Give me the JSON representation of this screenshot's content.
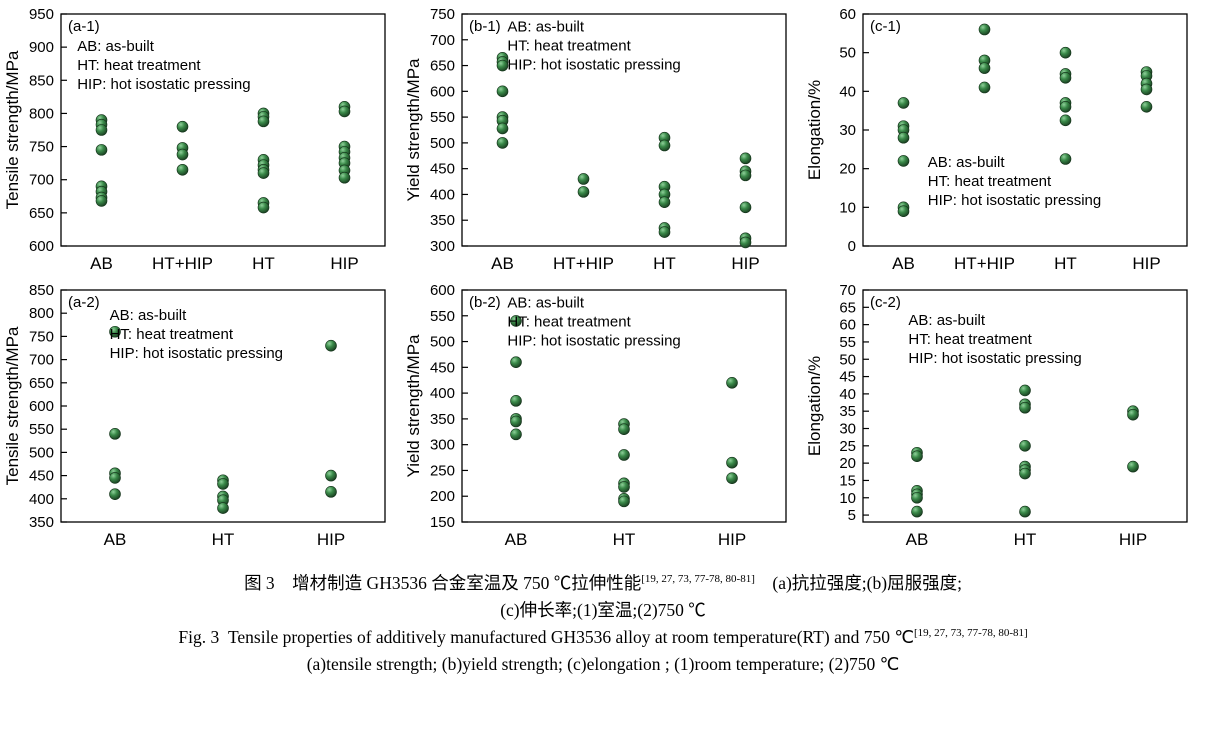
{
  "figure": {
    "marker": {
      "fill": "#3a8a49",
      "highlight": "#8fd09a",
      "edge": "#14321a"
    },
    "axis_color": "#000000"
  },
  "chart_data": [
    {
      "id": "a-1",
      "type": "scatter",
      "panel_label": "(a-1)",
      "ylabel": "Tensile strength/MPa",
      "ylim": [
        600,
        950
      ],
      "yticks": [
        600,
        650,
        700,
        750,
        800,
        850,
        900,
        950
      ],
      "legend": {
        "lines": [
          "AB: as-built",
          "HT: heat treatment",
          "HIP: hot isostatic pressing"
        ],
        "pos": {
          "x": 0.05,
          "y": 0.1
        }
      },
      "series": [
        {
          "category": "AB",
          "values": [
            790,
            783,
            775,
            745,
            690,
            682,
            673,
            668
          ]
        },
        {
          "category": "HT+HIP",
          "values": [
            780,
            748,
            738,
            715
          ]
        },
        {
          "category": "HT",
          "values": [
            800,
            795,
            788,
            730,
            722,
            715,
            710,
            665,
            658
          ]
        },
        {
          "category": "HIP",
          "values": [
            810,
            803,
            750,
            742,
            733,
            725,
            714,
            703
          ]
        }
      ]
    },
    {
      "id": "b-1",
      "type": "scatter",
      "panel_label": "(b-1)",
      "ylabel": "Yield strength/MPa",
      "ylim": [
        300,
        750
      ],
      "yticks": [
        300,
        350,
        400,
        450,
        500,
        550,
        600,
        650,
        700,
        750
      ],
      "legend": {
        "lines": [
          "AB: as-built",
          "HT: heat treatment",
          "HIP: hot isostatic pressing"
        ],
        "pos": {
          "x": 0.14,
          "y": 0.015
        }
      },
      "series": [
        {
          "category": "AB",
          "values": [
            665,
            657,
            650,
            600,
            550,
            543,
            528,
            500
          ]
        },
        {
          "category": "HT+HIP",
          "values": [
            430,
            405
          ]
        },
        {
          "category": "HT",
          "values": [
            510,
            495,
            415,
            400,
            385,
            335,
            327
          ]
        },
        {
          "category": "HIP",
          "values": [
            470,
            445,
            437,
            375,
            315,
            307
          ]
        }
      ]
    },
    {
      "id": "c-1",
      "type": "scatter",
      "panel_label": "(c-1)",
      "ylabel": "Elongation/%",
      "ylim": [
        0,
        60
      ],
      "yticks": [
        0,
        10,
        20,
        30,
        40,
        50,
        60
      ],
      "legend": {
        "lines": [
          "AB: as-built",
          "HT: heat treatment",
          "HIP: hot isostatic pressing"
        ],
        "pos": {
          "x": 0.2,
          "y": 0.6
        }
      },
      "series": [
        {
          "category": "AB",
          "values": [
            37,
            31,
            30,
            28,
            22,
            10,
            9
          ]
        },
        {
          "category": "HT+HIP",
          "values": [
            56,
            48,
            46,
            41
          ]
        },
        {
          "category": "HT",
          "values": [
            50,
            44.5,
            43.5,
            37,
            36,
            32.5,
            22.5
          ]
        },
        {
          "category": "HIP",
          "values": [
            45,
            44,
            42,
            40.5,
            36
          ]
        }
      ]
    },
    {
      "id": "a-2",
      "type": "scatter",
      "panel_label": "(a-2)",
      "ylabel": "Tensile strength/MPa",
      "ylim": [
        350,
        850
      ],
      "yticks": [
        350,
        400,
        450,
        500,
        550,
        600,
        650,
        700,
        750,
        800,
        850
      ],
      "legend": {
        "lines": [
          "AB: as-built",
          "HT: heat treatment",
          "HIP: hot isostatic pressing"
        ],
        "pos": {
          "x": 0.15,
          "y": 0.07
        }
      },
      "series": [
        {
          "category": "AB",
          "values": [
            760,
            540,
            455,
            445,
            410
          ]
        },
        {
          "category": "HT",
          "values": [
            440,
            432,
            405,
            397,
            380
          ]
        },
        {
          "category": "HIP",
          "values": [
            730,
            450,
            415
          ]
        }
      ]
    },
    {
      "id": "b-2",
      "type": "scatter",
      "panel_label": "(b-2)",
      "ylabel": "Yield strength/MPa",
      "ylim": [
        150,
        600
      ],
      "yticks": [
        150,
        200,
        250,
        300,
        350,
        400,
        450,
        500,
        550,
        600
      ],
      "legend": {
        "lines": [
          "AB: as-built",
          "HT: heat treatment",
          "HIP: hot isostatic pressing"
        ],
        "pos": {
          "x": 0.14,
          "y": 0.015
        }
      },
      "series": [
        {
          "category": "AB",
          "values": [
            540,
            460,
            385,
            350,
            345,
            320
          ]
        },
        {
          "category": "HT",
          "values": [
            340,
            330,
            280,
            225,
            218,
            195,
            190
          ]
        },
        {
          "category": "HIP",
          "values": [
            420,
            265,
            235
          ]
        }
      ]
    },
    {
      "id": "c-2",
      "type": "scatter",
      "panel_label": "(c-2)",
      "ylabel": "Elongation/%",
      "ylim": [
        3,
        70
      ],
      "yticks": [
        5,
        10,
        15,
        20,
        25,
        30,
        35,
        40,
        45,
        50,
        55,
        60,
        65,
        70
      ],
      "legend": {
        "lines": [
          "AB: as-built",
          "HT: heat treatment",
          "HIP: hot isostatic pressing"
        ],
        "pos": {
          "x": 0.14,
          "y": 0.09
        }
      },
      "series": [
        {
          "category": "AB",
          "values": [
            23,
            22,
            12,
            11,
            10,
            6
          ]
        },
        {
          "category": "HT",
          "values": [
            41,
            37,
            36,
            25,
            19,
            18,
            17,
            6
          ]
        },
        {
          "category": "HIP",
          "values": [
            35,
            34,
            19
          ]
        }
      ]
    }
  ],
  "captions": {
    "refs": "[19, 27, 73, 77-78, 80-81]",
    "cn_line1_pre": "图 3　增材制造 GH3536 合金室温及 750 ℃拉伸性能",
    "cn_line1_post": "　(a)抗拉强度;(b)屈服强度;",
    "cn_line2": "(c)伸长率;(1)室温;(2)750 ℃",
    "en_line1_pre": "Fig. 3  Tensile properties of additively manufactured GH3536 alloy at room temperature(RT) and 750 ℃",
    "en_line2": "(a)tensile strength; (b)yield strength; (c)elongation ; (1)room temperature; (2)750 ℃"
  }
}
